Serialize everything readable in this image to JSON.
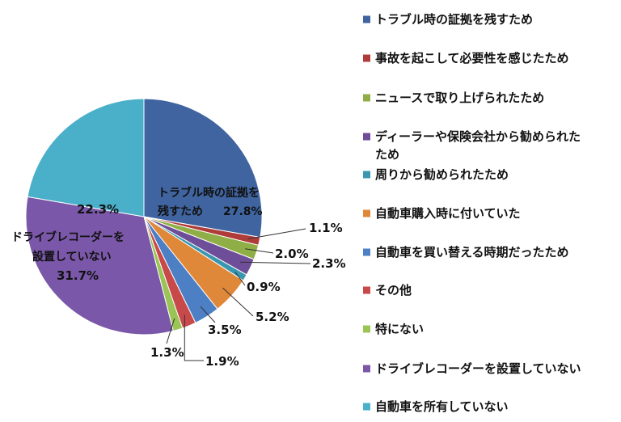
{
  "chart_data": {
    "type": "pie",
    "start_angle_deg": 0,
    "direction": "clockwise",
    "legend_position": "right",
    "slices": [
      {
        "name": "トラブル時の証拠を残すため",
        "value": 27.8,
        "label": "27.8%",
        "color": "#3F64A0"
      },
      {
        "name": "事故を起こして必要性を感じたため",
        "value": 1.1,
        "label": "1.1%",
        "color": "#B03C3A"
      },
      {
        "name": "ニュースで取り上げられたため",
        "value": 2.0,
        "label": "2.0%",
        "color": "#8FAE45"
      },
      {
        "name": "ディーラーや保険会社から勧められたため",
        "value": 2.3,
        "label": "2.3%",
        "color": "#6E4E98"
      },
      {
        "name": "周りから勧められたため",
        "value": 0.9,
        "label": "0.9%",
        "color": "#3A97B0"
      },
      {
        "name": "自動車購入時に付いていた",
        "value": 5.2,
        "label": "5.2%",
        "color": "#E0883A"
      },
      {
        "name": "自動車を買い替える時期だったため",
        "value": 3.5,
        "label": "3.5%",
        "color": "#4D7FC4"
      },
      {
        "name": "その他",
        "value": 1.9,
        "label": "1.9%",
        "color": "#C8494A"
      },
      {
        "name": "特にない",
        "value": 1.3,
        "label": "1.3%",
        "color": "#9BC456"
      },
      {
        "name": "ドライブレコーダーを設置していない",
        "value": 31.7,
        "label": "31.7%",
        "color": "#7A57A8"
      },
      {
        "name": "自動車を所有していない",
        "value": 22.3,
        "label": "22.3%",
        "color": "#4AAFC9"
      }
    ],
    "inner_labels": {
      "first_line1": "トラブル時の証拠を",
      "first_line2": "残すため",
      "first_value": "27.8%",
      "tenth_line1": "ドライブレコーダーを",
      "tenth_line2": "設置していない",
      "tenth_value": "31.7%",
      "last_value": "22.3%"
    },
    "legend_wrap": {
      "item4_line1": "ディーラーや保険会社から勧められた",
      "item4_line2": "ため"
    }
  }
}
